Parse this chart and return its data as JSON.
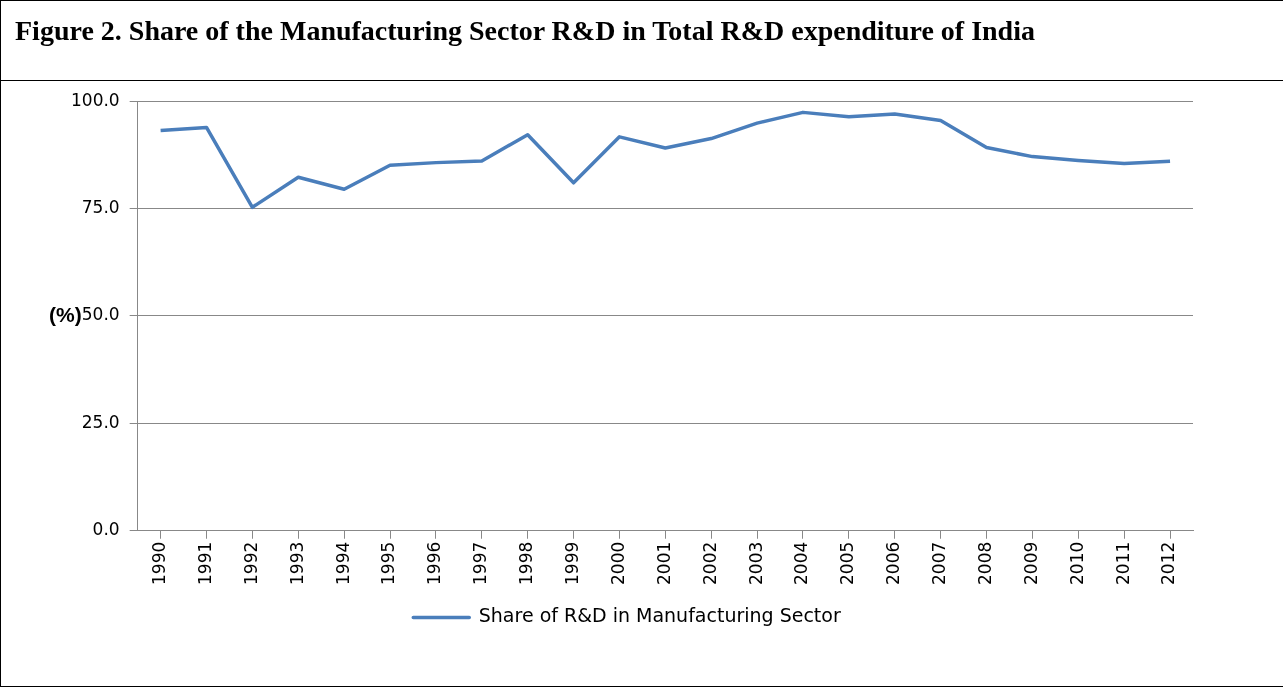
{
  "chart_data": {
    "type": "line",
    "title": "Figure 2. Share of the Manufacturing Sector R&D in Total R&D expenditure of India",
    "ylabel": "(%)",
    "categories": [
      "1990",
      "1991",
      "1992",
      "1993",
      "1994",
      "1995",
      "1996",
      "1997",
      "1998",
      "1999",
      "2000",
      "2001",
      "2002",
      "2003",
      "2004",
      "2005",
      "2006",
      "2007",
      "2008",
      "2009",
      "2010",
      "2011",
      "2012"
    ],
    "series": [
      {
        "name": "Share of R&D in Manufacturing Sector",
        "color": "#4a7ebb",
        "values": [
          93.2,
          93.9,
          75.3,
          82.3,
          79.5,
          85.1,
          85.7,
          86.1,
          92.2,
          81.0,
          91.7,
          89.1,
          91.3,
          94.9,
          97.4,
          96.4,
          97.0,
          95.5,
          89.2,
          87.1,
          86.2,
          85.5,
          86.0
        ]
      }
    ],
    "ylim": [
      0,
      100
    ],
    "yticks": [
      {
        "value": 0,
        "label": "0.0"
      },
      {
        "value": 25,
        "label": "25.0"
      },
      {
        "value": 50,
        "label": "50.0"
      },
      {
        "value": 75,
        "label": "75.0"
      },
      {
        "value": 100,
        "label": "100.0"
      }
    ],
    "grid": "y",
    "legend": "bottom",
    "marker": "none",
    "line_style": "solid"
  }
}
